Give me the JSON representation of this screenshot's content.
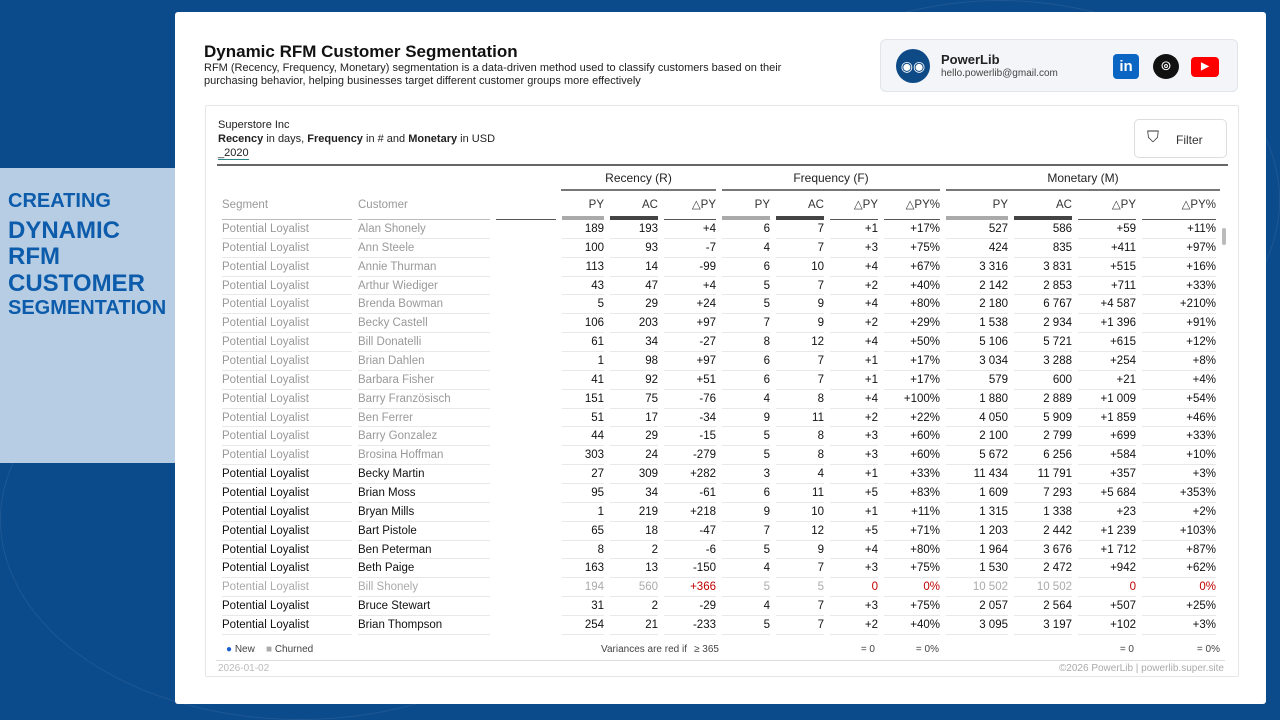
{
  "header": {
    "title": "Dynamic RFM Customer Segmentation",
    "description": "RFM (Recency, Frequency, Monetary) segmentation is a data-driven method used to classify customers based on their purchasing behavior, helping businesses target different customer groups more effectively"
  },
  "profile": {
    "name": "PowerLib",
    "email": "hello.powerlib@gmail.com",
    "icons": [
      "owl-logo-icon",
      "linkedin-icon",
      "github-icon",
      "youtube-icon"
    ]
  },
  "report": {
    "company": "Superstore Inc",
    "units_parts": [
      "Recency",
      " in days, ",
      "Frequency",
      " in # and ",
      "Monetary",
      " in USD"
    ],
    "year": "_2020",
    "filter_label": "Filter"
  },
  "groups": [
    "Recency (R)",
    "Frequency (F)",
    "Monetary (M)"
  ],
  "columns": [
    "Segment",
    "Customer",
    "",
    "PY",
    "AC",
    "△PY",
    "PY",
    "AC",
    "△PY",
    "△PY%",
    "PY",
    "AC",
    "△PY",
    "△PY%"
  ],
  "rows": [
    [
      "Potential Loyalist",
      "Alan Shonely",
      "189",
      "193",
      "+4",
      "6",
      "7",
      "+1",
      "+17%",
      "527",
      "586",
      "+59",
      "+11%"
    ],
    [
      "Potential Loyalist",
      "Ann Steele",
      "100",
      "93",
      "-7",
      "4",
      "7",
      "+3",
      "+75%",
      "424",
      "835",
      "+411",
      "+97%"
    ],
    [
      "Potential Loyalist",
      "Annie Thurman",
      "113",
      "14",
      "-99",
      "6",
      "10",
      "+4",
      "+67%",
      "3 316",
      "3 831",
      "+515",
      "+16%"
    ],
    [
      "Potential Loyalist",
      "Arthur Wiediger",
      "43",
      "47",
      "+4",
      "5",
      "7",
      "+2",
      "+40%",
      "2 142",
      "2 853",
      "+711",
      "+33%"
    ],
    [
      "Potential Loyalist",
      "Brenda Bowman",
      "5",
      "29",
      "+24",
      "5",
      "9",
      "+4",
      "+80%",
      "2 180",
      "6 767",
      "+4 587",
      "+210%"
    ],
    [
      "Potential Loyalist",
      "Becky Castell",
      "106",
      "203",
      "+97",
      "7",
      "9",
      "+2",
      "+29%",
      "1 538",
      "2 934",
      "+1 396",
      "+91%"
    ],
    [
      "Potential Loyalist",
      "Bill Donatelli",
      "61",
      "34",
      "-27",
      "8",
      "12",
      "+4",
      "+50%",
      "5 106",
      "5 721",
      "+615",
      "+12%"
    ],
    [
      "Potential Loyalist",
      "Brian Dahlen",
      "1",
      "98",
      "+97",
      "6",
      "7",
      "+1",
      "+17%",
      "3 034",
      "3 288",
      "+254",
      "+8%"
    ],
    [
      "Potential Loyalist",
      "Barbara Fisher",
      "41",
      "92",
      "+51",
      "6",
      "7",
      "+1",
      "+17%",
      "579",
      "600",
      "+21",
      "+4%"
    ],
    [
      "Potential Loyalist",
      "Barry Französisch",
      "151",
      "75",
      "-76",
      "4",
      "8",
      "+4",
      "+100%",
      "1 880",
      "2 889",
      "+1 009",
      "+54%"
    ],
    [
      "Potential Loyalist",
      "Ben Ferrer",
      "51",
      "17",
      "-34",
      "9",
      "11",
      "+2",
      "+22%",
      "4 050",
      "5 909",
      "+1 859",
      "+46%"
    ],
    [
      "Potential Loyalist",
      "Barry Gonzalez",
      "44",
      "29",
      "-15",
      "5",
      "8",
      "+3",
      "+60%",
      "2 100",
      "2 799",
      "+699",
      "+33%"
    ],
    [
      "Potential Loyalist",
      "Brosina Hoffman",
      "303",
      "24",
      "-279",
      "5",
      "8",
      "+3",
      "+60%",
      "5 672",
      "6 256",
      "+584",
      "+10%"
    ],
    [
      "Potential Loyalist",
      "Becky Martin",
      "27",
      "309",
      "+282",
      "3",
      "4",
      "+1",
      "+33%",
      "11 434",
      "11 791",
      "+357",
      "+3%"
    ],
    [
      "Potential Loyalist",
      "Brian Moss",
      "95",
      "34",
      "-61",
      "6",
      "11",
      "+5",
      "+83%",
      "1 609",
      "7 293",
      "+5 684",
      "+353%"
    ],
    [
      "Potential Loyalist",
      "Bryan Mills",
      "1",
      "219",
      "+218",
      "9",
      "10",
      "+1",
      "+11%",
      "1 315",
      "1 338",
      "+23",
      "+2%"
    ],
    [
      "Potential Loyalist",
      "Bart Pistole",
      "65",
      "18",
      "-47",
      "7",
      "12",
      "+5",
      "+71%",
      "1 203",
      "2 442",
      "+1 239",
      "+103%"
    ],
    [
      "Potential Loyalist",
      "Ben Peterman",
      "8",
      "2",
      "-6",
      "5",
      "9",
      "+4",
      "+80%",
      "1 964",
      "3 676",
      "+1 712",
      "+87%"
    ],
    [
      "Potential Loyalist",
      "Beth Paige",
      "163",
      "13",
      "-150",
      "4",
      "7",
      "+3",
      "+75%",
      "1 530",
      "2 472",
      "+942",
      "+62%"
    ],
    [
      "Potential Loyalist",
      "Bill Shonely",
      "194",
      "560",
      "+366",
      "5",
      "5",
      "0",
      "0%",
      "10 502",
      "10 502",
      "0",
      "0%"
    ],
    [
      "Potential Loyalist",
      "Bruce Stewart",
      "31",
      "2",
      "-29",
      "4",
      "7",
      "+3",
      "+75%",
      "2 057",
      "2 564",
      "+507",
      "+25%"
    ],
    [
      "Potential Loyalist",
      "Brian Thompson",
      "254",
      "21",
      "-233",
      "5",
      "7",
      "+2",
      "+40%",
      "3 095",
      "3 197",
      "+102",
      "+3%"
    ]
  ],
  "churned_row_index": 19,
  "legend": {
    "new": "New",
    "churned": "Churned",
    "variance_note": "Variances are red if",
    "r_rule": "≥ 365",
    "f_abs": "= 0",
    "f_pct": "= 0%",
    "m_abs": "= 0",
    "m_pct": "= 0%"
  },
  "footer": {
    "date": "2026-01-02",
    "credit": "©2026 PowerLib | powerlib.super.site"
  },
  "overlay": {
    "line1": "CREATING",
    "line2": "DYNAMIC RFM",
    "line3": "CUSTOMER",
    "line4": "SEGMENTATION"
  },
  "colors": {
    "background": "#0b4a8b",
    "overlay_text": "#0d5cab",
    "negative_variance": "#c00000",
    "linkedin": "#0a66c2",
    "youtube": "#ff0000"
  }
}
